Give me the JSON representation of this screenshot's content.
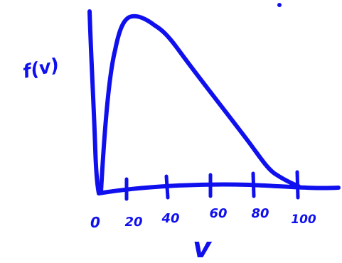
{
  "colors": {
    "ink": "#1010ee",
    "background": "#ffffff"
  },
  "labels": {
    "y_axis": "f(v)",
    "x_axis": "v"
  },
  "ticks": [
    {
      "value": 0,
      "label": "0"
    },
    {
      "value": 20,
      "label": "20"
    },
    {
      "value": 40,
      "label": "40"
    },
    {
      "value": 60,
      "label": "60"
    },
    {
      "value": 80,
      "label": "80"
    },
    {
      "value": 100,
      "label": "100"
    }
  ]
}
